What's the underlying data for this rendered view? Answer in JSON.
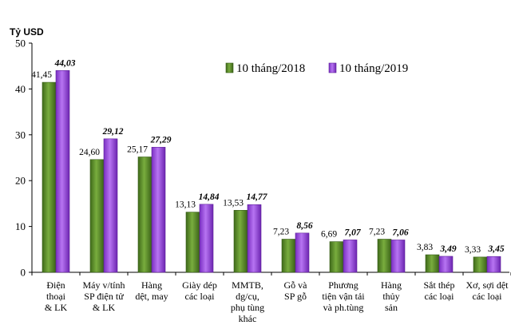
{
  "chart_data": {
    "type": "bar",
    "ylabel": "Tỷ USD",
    "ylim": [
      0,
      50
    ],
    "yticks": [
      "0",
      "10",
      "20",
      "30",
      "40",
      "50"
    ],
    "legend_position": "top-right",
    "categories": [
      [
        "Điện",
        "thoại",
        "& LK"
      ],
      [
        "Máy v/tính",
        "SP điện tử",
        "& LK"
      ],
      [
        "Hàng",
        "dệt, may"
      ],
      [
        "Giày dép",
        "các loại"
      ],
      [
        "MMTB,",
        "dg/cụ,",
        "phụ tùng",
        "khác"
      ],
      [
        "Gỗ và",
        "SP gỗ"
      ],
      [
        "Phương",
        "tiện vận tải",
        "và ph.tùng"
      ],
      [
        "Hàng",
        "thủy",
        "sản"
      ],
      [
        "Sắt thép",
        "các loại"
      ],
      [
        "Xơ, sợi dệt",
        "các loại"
      ]
    ],
    "series": [
      {
        "name": "10 tháng/2018",
        "color": "#5B8C2A",
        "values": [
          41.45,
          24.6,
          25.17,
          13.13,
          13.53,
          7.23,
          6.69,
          7.23,
          3.83,
          3.33
        ],
        "labels": [
          "41,45",
          "24,60",
          "25,17",
          "13,13",
          "13,53",
          "7,23",
          "6,69",
          "7,23",
          "3,83",
          "3,33"
        ]
      },
      {
        "name": "10 tháng/2019",
        "color": "#9B46E0",
        "values": [
          44.03,
          29.12,
          27.29,
          14.84,
          14.77,
          8.56,
          7.07,
          7.06,
          3.49,
          3.45
        ],
        "labels": [
          "44,03",
          "29,12",
          "27,29",
          "14,84",
          "14,77",
          "8,56",
          "7,07",
          "7,06",
          "3,49",
          "3,45"
        ]
      }
    ]
  }
}
